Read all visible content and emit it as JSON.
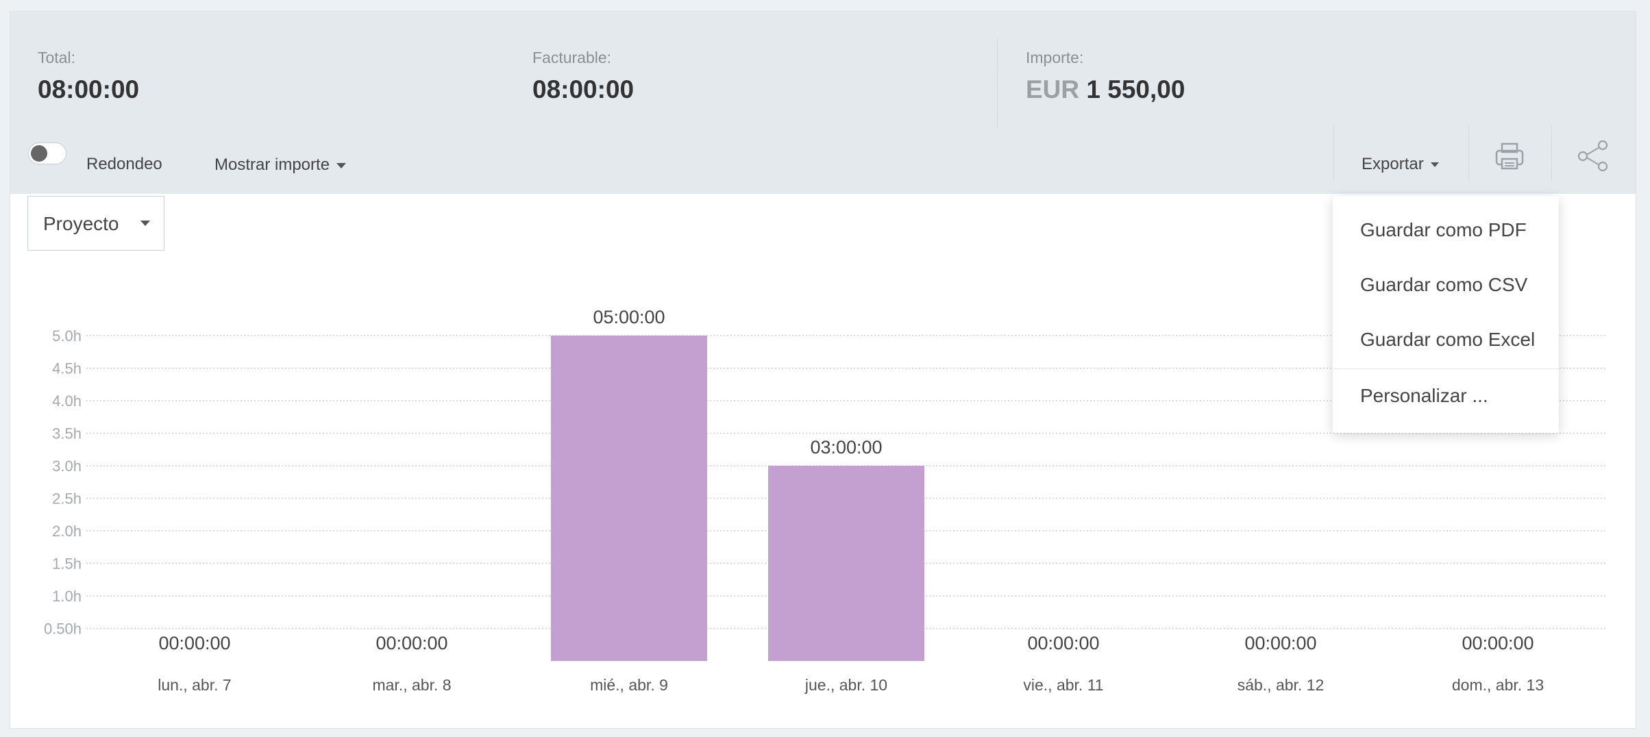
{
  "summary": {
    "total": {
      "label": "Total:",
      "value": "08:00:00"
    },
    "billable": {
      "label": "Facturable:",
      "value": "08:00:00"
    },
    "amount": {
      "label": "Importe:",
      "currency": "EUR",
      "value": "1 550,00"
    }
  },
  "toolbar": {
    "rounding_label": "Redondeo",
    "rounding_on": false,
    "show_amount_label": "Mostrar importe",
    "export_label": "Exportar"
  },
  "group_select": {
    "value": "Proyecto"
  },
  "export_menu": {
    "items": [
      "Guardar como PDF",
      "Guardar como CSV",
      "Guardar como Excel"
    ],
    "customize": "Personalizar ..."
  },
  "colors": {
    "bar": "#c3a0cf",
    "grid": "#c9cdd1"
  },
  "chart_data": {
    "type": "bar",
    "categories": [
      "lun., abr. 7",
      "mar., abr. 8",
      "mié., abr. 9",
      "jue., abr. 10",
      "vie., abr. 11",
      "sáb., abr. 12",
      "dom., abr. 13"
    ],
    "values": [
      0,
      0,
      5,
      3,
      0,
      0,
      0
    ],
    "value_labels": [
      "00:00:00",
      "00:00:00",
      "05:00:00",
      "03:00:00",
      "00:00:00",
      "00:00:00",
      "00:00:00"
    ],
    "yticks": [
      "0.50h",
      "1.0h",
      "1.5h",
      "2.0h",
      "2.5h",
      "3.0h",
      "3.5h",
      "4.0h",
      "4.5h",
      "5.0h"
    ],
    "ylim": [
      0,
      5
    ],
    "grid": true
  }
}
